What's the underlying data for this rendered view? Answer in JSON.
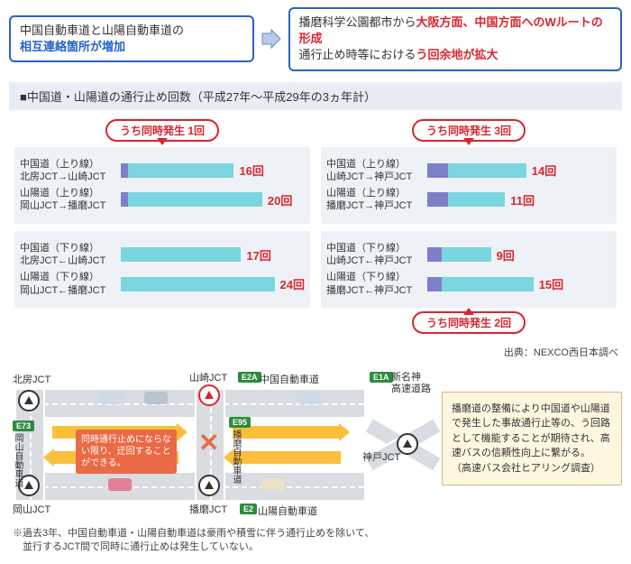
{
  "header": {
    "left_line1": "中国自動車道と山陽自動車道の",
    "left_line2": "相互連絡箇所が増加",
    "right_line1_a": "播磨科学公園都市から",
    "right_line1_b": "大阪方面、中国方面へのWルートの形成",
    "right_line2_a": "通行止め時等における",
    "right_line2_b": "う回余地が拡大"
  },
  "chart": {
    "title": "■中国道・山陽道の通行止め回数（平成27年〜平成29年の3ヵ年計）",
    "max": 26,
    "colors": {
      "main": "#7ad5de",
      "overlap": "#7d7fc9",
      "bg": "#eef2f7"
    },
    "left": {
      "badge": "うち同時発生 1回",
      "groups": [
        {
          "rows": [
            {
              "l1": "中国道（上り線）",
              "l2": "北房JCT→山崎JCT",
              "val": 16,
              "overlap": 1
            },
            {
              "l1": "山陽道（上り線）",
              "l2": "岡山JCT→播磨JCT",
              "val": 20,
              "overlap": 1
            }
          ]
        },
        {
          "rows": [
            {
              "l1": "中国道（下り線）",
              "l2": "北房JCT←山崎JCT",
              "val": 17,
              "overlap": 0
            },
            {
              "l1": "山陽道（下り線）",
              "l2": "岡山JCT←播磨JCT",
              "val": 24,
              "overlap": 0
            }
          ]
        }
      ]
    },
    "right": {
      "badge_top": "うち同時発生 3回",
      "badge_bottom": "うち同時発生 2回",
      "groups": [
        {
          "rows": [
            {
              "l1": "中国道（上り線）",
              "l2": "山崎JCT→神戸JCT",
              "val": 14,
              "overlap": 3
            },
            {
              "l1": "山陽道（上り線）",
              "l2": "播磨JCT→神戸JCT",
              "val": 11,
              "overlap": 3
            }
          ]
        },
        {
          "rows": [
            {
              "l1": "中国道（下り線）",
              "l2": "山崎JCT←神戸JCT",
              "val": 9,
              "overlap": 2
            },
            {
              "l1": "山陽道（下り線）",
              "l2": "播磨JCT←神戸JCT",
              "val": 15,
              "overlap": 2
            }
          ]
        }
      ]
    },
    "source": "出典：NEXCO西日本調べ"
  },
  "map": {
    "jct": {
      "hokubo": "北房JCT",
      "yamasaki": "山崎JCT",
      "okayama": "岡山JCT",
      "harima": "播磨JCT",
      "kobe": "神戸JCT"
    },
    "shields": {
      "e73": "E73",
      "e2a": "E2A",
      "e95": "E95",
      "e2": "E2",
      "e1a": "E1A"
    },
    "routes": {
      "okayama_v": "岡山自動車道",
      "chugoku": "中国自動車道",
      "harima_v": "播磨自動車道",
      "sanyo": "山陽自動車道",
      "shinmeishin": "新名神\n高速道路"
    },
    "callout": "同時通行止めにならない限り、迂回することができる。",
    "note": "播磨道の整備により中国道や山陽道で発生した事故通行止等の、う回路として機能することが期待され、高速バスの信頼性向上に繋がる。\n（高速バス会社ヒアリング調査）",
    "car_colors": [
      "#cfdbe6",
      "#b9c4cf",
      "#e57e9a",
      "#e9e2c8",
      "#cfdbe6"
    ]
  },
  "footnote": "※過去3年、中国自動車道・山陽自動車道は豪雨や積雪に伴う通行止めを除いて、\n　並行するJCT間で同時に通行止めは発生していない。"
}
